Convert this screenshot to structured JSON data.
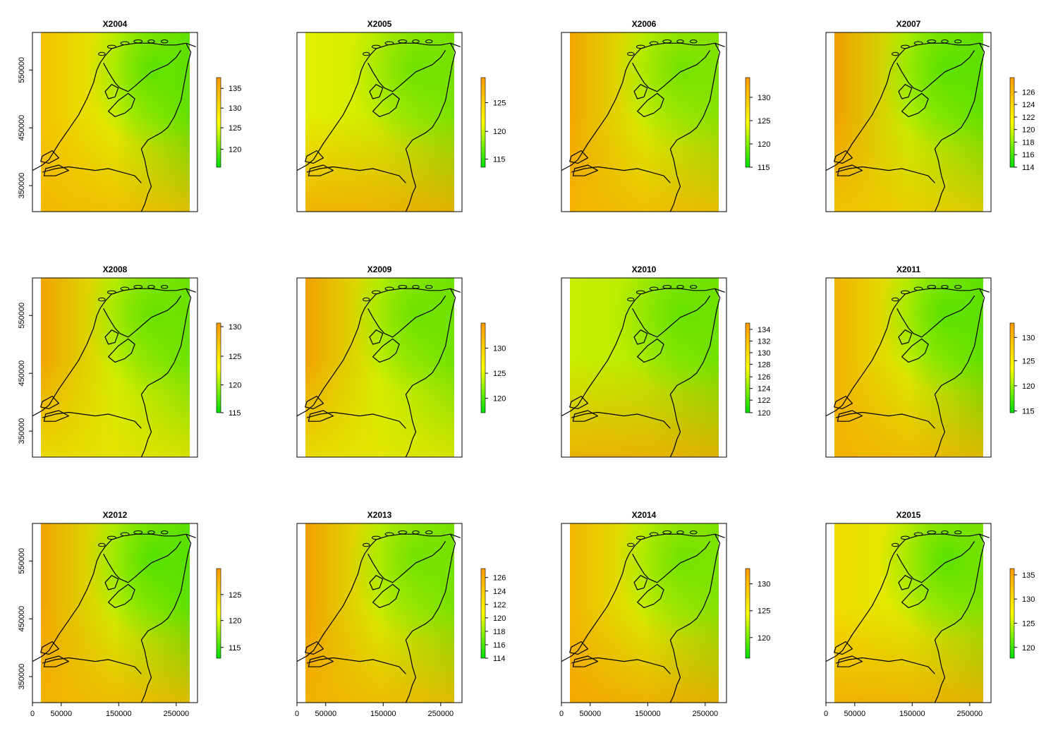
{
  "panels": [
    {
      "title": "X2004",
      "legend_ticks": [
        "135",
        "130",
        "125",
        "120"
      ],
      "legend_levels": [
        0.88,
        0.66,
        0.44,
        0.2
      ],
      "west": "#f5c200",
      "mid": "#dff000",
      "east": "#62e000",
      "south": "#f2b800",
      "ne": "#52e000"
    },
    {
      "title": "X2005",
      "legend_ticks": [
        "125",
        "120",
        "115"
      ],
      "legend_levels": [
        0.72,
        0.4,
        0.09
      ],
      "west": "#e6ee00",
      "mid": "#ccee00",
      "east": "#7ee200",
      "south": "#f2a800",
      "ne": "#66e000"
    },
    {
      "title": "X2006",
      "legend_ticks": [
        "130",
        "125",
        "120",
        "115"
      ],
      "legend_levels": [
        0.78,
        0.52,
        0.26,
        0.0
      ],
      "west": "#f1a600",
      "mid": "#d6ef00",
      "east": "#8be200",
      "south": "#f4b600",
      "ne": "#6be000"
    },
    {
      "title": "X2007",
      "legend_ticks": [
        "126",
        "124",
        "122",
        "120",
        "118",
        "116",
        "114"
      ],
      "legend_levels": [
        0.84,
        0.7,
        0.56,
        0.42,
        0.28,
        0.14,
        0.0
      ],
      "west": "#f19f00",
      "mid": "#c6ef00",
      "east": "#62e000",
      "south": "#f0c800",
      "ne": "#50e000"
    },
    {
      "title": "X2008",
      "legend_ticks": [
        "130",
        "125",
        "120",
        "115"
      ],
      "legend_levels": [
        0.96,
        0.63,
        0.31,
        0.0
      ],
      "west": "#f1a300",
      "mid": "#d3ef00",
      "east": "#6ee200",
      "south": "#e8e000",
      "ne": "#5de000"
    },
    {
      "title": "X2009",
      "legend_ticks": [
        "130",
        "125",
        "120"
      ],
      "legend_levels": [
        0.72,
        0.44,
        0.16
      ],
      "west": "#f1a100",
      "mid": "#d2ef00",
      "east": "#72e200",
      "south": "#e6e400",
      "ne": "#62e000"
    },
    {
      "title": "X2010",
      "legend_ticks": [
        "134",
        "132",
        "130",
        "128",
        "126",
        "124",
        "122",
        "120"
      ],
      "legend_levels": [
        0.93,
        0.8,
        0.67,
        0.54,
        0.4,
        0.27,
        0.14,
        0.0
      ],
      "west": "#c8ee00",
      "mid": "#b7ec00",
      "east": "#74e200",
      "south": "#f0a900",
      "ne": "#5ee000"
    },
    {
      "title": "X2011",
      "legend_ticks": [
        "130",
        "125",
        "120",
        "115"
      ],
      "legend_levels": [
        0.84,
        0.58,
        0.3,
        0.02
      ],
      "west": "#f3b200",
      "mid": "#d9ef00",
      "east": "#62e000",
      "south": "#f2b200",
      "ne": "#4de000"
    },
    {
      "title": "X2012",
      "legend_ticks": [
        "125",
        "120",
        "115"
      ],
      "legend_levels": [
        0.71,
        0.42,
        0.12
      ],
      "west": "#f1a400",
      "mid": "#d0ef00",
      "east": "#5ee000",
      "south": "#f3b400",
      "ne": "#4ae000"
    },
    {
      "title": "X2013",
      "legend_ticks": [
        "126",
        "124",
        "122",
        "120",
        "118",
        "116",
        "114"
      ],
      "legend_levels": [
        0.9,
        0.75,
        0.6,
        0.45,
        0.3,
        0.15,
        0.0
      ],
      "west": "#f1a000",
      "mid": "#d6ef00",
      "east": "#7ae200",
      "south": "#f1b400",
      "ne": "#6ae000"
    },
    {
      "title": "X2014",
      "legend_ticks": [
        "130",
        "125",
        "120"
      ],
      "legend_levels": [
        0.83,
        0.53,
        0.23
      ],
      "west": "#f3b600",
      "mid": "#d8ef00",
      "east": "#86e200",
      "south": "#f1a600",
      "ne": "#68e000"
    },
    {
      "title": "X2015",
      "legend_ticks": [
        "135",
        "130",
        "125",
        "120"
      ],
      "legend_levels": [
        0.93,
        0.66,
        0.39,
        0.12
      ],
      "west": "#f2dc00",
      "mid": "#dcee00",
      "east": "#8ae200",
      "south": "#f1aa00",
      "ne": "#4ae000"
    }
  ],
  "y_ticks": [
    {
      "label": "350000",
      "value": 350000
    },
    {
      "label": "450000",
      "value": 450000
    },
    {
      "label": "550000",
      "value": 550000
    }
  ],
  "x_ticks": [
    {
      "label": "0",
      "value": 0
    },
    {
      "label": "50000",
      "value": 50000
    },
    {
      "label": "150000",
      "value": 150000
    },
    {
      "label": "250000",
      "value": 250000
    }
  ],
  "colors": {
    "low": "#00dd00",
    "mid": "#ffff00",
    "high": "#ff9900",
    "line": "#000000"
  }
}
